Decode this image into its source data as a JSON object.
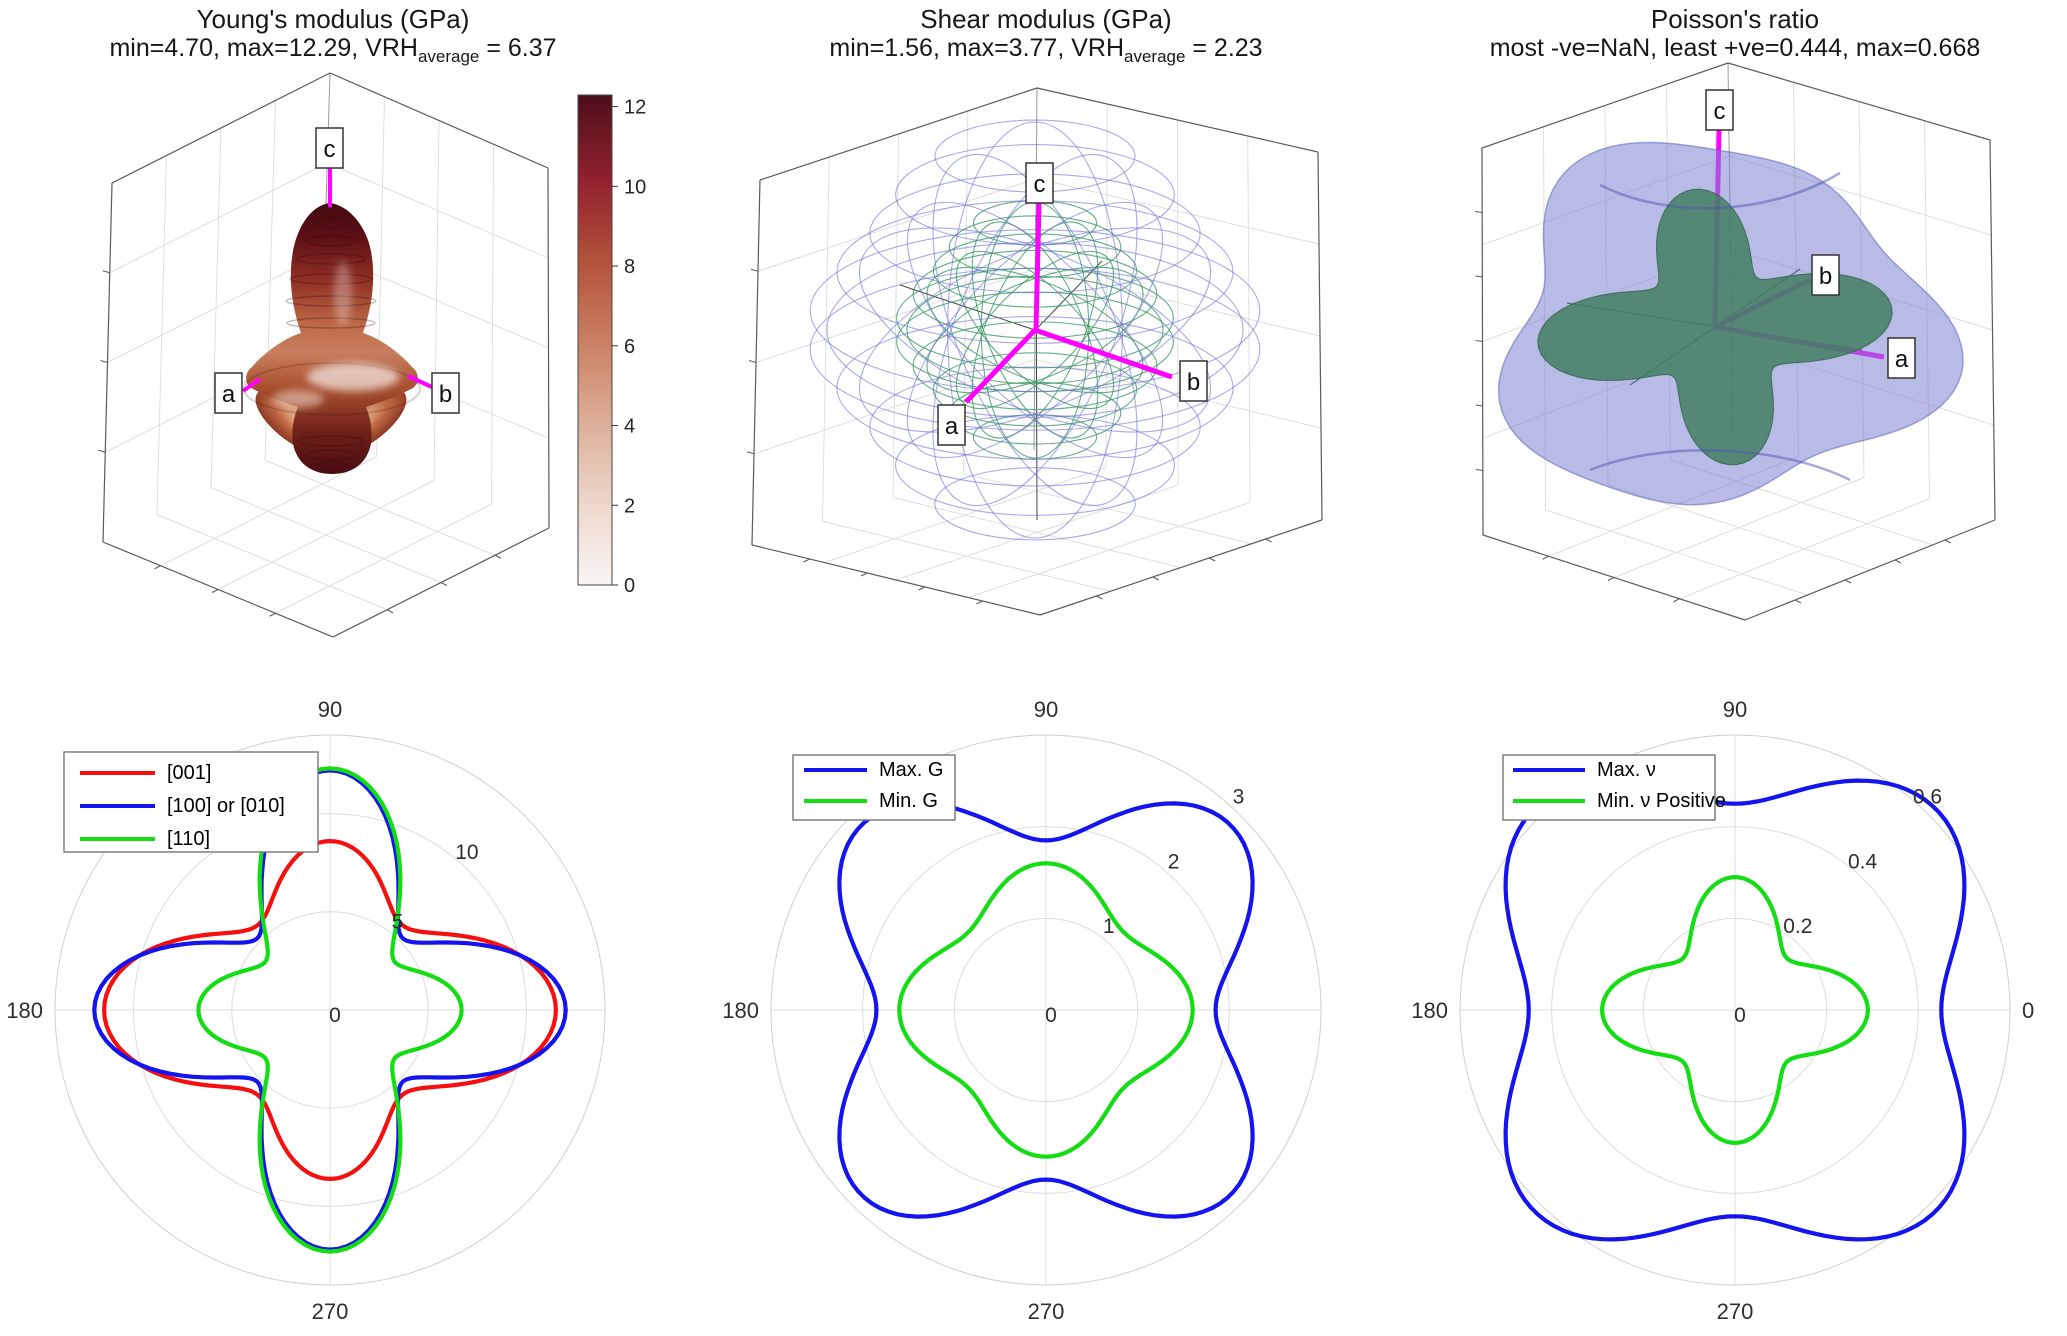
{
  "figure": {
    "background": "#ffffff",
    "accent_magenta": "#ff00ff",
    "grid_color": "#dcdcdc",
    "text_color": "#2b2b2b"
  },
  "panels3d": [
    {
      "title_line1": "Young's modulus (GPa)",
      "sub_pre": "min=4.70, max=12.29, VRH",
      "sub": "average",
      "sub_post": " = 6.37",
      "axis_labels": {
        "a": "a",
        "b": "b",
        "c": "c"
      }
    },
    {
      "title_line1": "Shear modulus (GPa)",
      "sub_pre": "min=1.56, max=3.77, VRH",
      "sub": "average",
      "sub_post": " = 2.23",
      "axis_labels": {
        "a": "a",
        "b": "b",
        "c": "c"
      }
    },
    {
      "title_line1": "Poisson's ratio",
      "sub_pre": "most -ve=NaN, least +ve=0.444, max=0.668",
      "sub": "",
      "sub_post": "",
      "axis_labels": {
        "a": "a",
        "b": "b",
        "c": "c"
      }
    }
  ],
  "chart_data": [
    {
      "type": "surface3d",
      "panel": "young",
      "title": "Young's modulus (GPa)",
      "stats": {
        "min": 4.7,
        "max": 12.29,
        "VRH_average": 6.37
      },
      "surface_style": "solid directional surface, colormap white-to-dark-red",
      "axes": [
        "a",
        "b",
        "c"
      ],
      "colorbar": {
        "min": 0,
        "max": 12.29,
        "ticks": [
          0,
          2,
          4,
          6,
          8,
          10,
          12
        ],
        "colors_bottom_to_top": [
          "#f9f5f3",
          "#edd7cb",
          "#dcae97",
          "#c97f62",
          "#b25039",
          "#8f202e",
          "#4d0f1a"
        ]
      }
    },
    {
      "type": "surface3d",
      "panel": "shear",
      "title": "Shear modulus (GPa)",
      "stats": {
        "min": 1.56,
        "max": 3.77,
        "VRH_average": 2.23
      },
      "surfaces": [
        {
          "name": "Max. G",
          "style": "wire mesh",
          "color": "#7b7bd8"
        },
        {
          "name": "Min. G",
          "style": "wire mesh",
          "color": "#3f9f72"
        }
      ],
      "axes": [
        "a",
        "b",
        "c"
      ]
    },
    {
      "type": "surface3d",
      "panel": "poisson",
      "title": "Poisson's ratio",
      "stats": {
        "most_negative": "NaN",
        "least_positive": 0.444,
        "max": 0.668
      },
      "surfaces": [
        {
          "name": "Max. ν",
          "style": "translucent",
          "color": "#7a7ecd"
        },
        {
          "name": "Min. ν Positive",
          "style": "solid",
          "color": "#2f7a48"
        }
      ],
      "axes": [
        "a",
        "b",
        "c"
      ]
    },
    {
      "type": "polar",
      "panel": "young_polar",
      "quantity": "Young's modulus (GPa) in-plane",
      "rmax": 14,
      "rings": [
        5,
        10,
        14
      ],
      "ring_tick_labels": [
        {
          "value": 5,
          "text": "5"
        },
        {
          "value": 10,
          "text": "10"
        }
      ],
      "zero_label": "0",
      "theta_tick_labels": [
        {
          "deg": 90,
          "text": "90"
        },
        {
          "deg": 180,
          "text": "180"
        },
        {
          "deg": 270,
          "text": "270"
        }
      ],
      "series": [
        {
          "name": "[001]",
          "color": "#f51010",
          "harmonics": {
            "A": 7.925,
            "B4": 2.125,
            "C2": 1.45
          },
          "theta_deg": [
            0,
            15,
            30,
            45,
            60,
            75,
            90,
            105,
            120,
            135,
            150,
            165,
            180,
            195,
            210,
            225,
            240,
            255,
            270,
            285,
            300,
            315,
            330,
            345
          ],
          "r": [
            11.5,
            10.24,
            7.59,
            5.8,
            6.14,
            7.73,
            8.6,
            7.73,
            6.14,
            5.8,
            7.59,
            10.24,
            11.5,
            10.24,
            7.59,
            5.8,
            6.14,
            7.73,
            8.6,
            7.73,
            6.14,
            5.8,
            7.59,
            10.24
          ]
        },
        {
          "name": "[100] or [010]",
          "color": "#1414ee",
          "harmonics": {
            "A": 8.65,
            "B4": 3.45,
            "C2": -0.1
          },
          "theta_deg": [
            0,
            15,
            30,
            45,
            60,
            75,
            90,
            105,
            120,
            135,
            150,
            165,
            180,
            195,
            210,
            225,
            240,
            255,
            270,
            285,
            300,
            315,
            330,
            345
          ],
          "r": [
            12.0,
            10.29,
            6.88,
            5.2,
            6.98,
            10.46,
            12.2,
            10.46,
            6.98,
            5.2,
            6.88,
            10.29,
            12.0,
            10.29,
            6.88,
            5.2,
            6.98,
            10.46,
            12.2,
            10.46,
            6.98,
            5.2,
            6.88,
            10.29
          ]
        },
        {
          "name": "[110]",
          "color": "#14dd14",
          "harmonics": {
            "A": 7.0,
            "B4": 2.5,
            "C2": -2.8
          },
          "theta_deg": [
            0,
            15,
            30,
            45,
            60,
            75,
            90,
            105,
            120,
            135,
            150,
            165,
            180,
            195,
            210,
            225,
            240,
            255,
            270,
            285,
            300,
            315,
            330,
            345
          ],
          "r": [
            6.7,
            5.83,
            4.35,
            4.5,
            7.15,
            10.68,
            12.3,
            10.68,
            7.15,
            4.5,
            4.35,
            5.83,
            6.7,
            5.83,
            4.35,
            4.5,
            7.15,
            10.68,
            12.3,
            10.68,
            7.15,
            4.5,
            4.35,
            5.83
          ]
        }
      ]
    },
    {
      "type": "polar",
      "panel": "shear_polar",
      "quantity": "Shear modulus (GPa) in-plane",
      "rmax": 3,
      "rings": [
        1,
        2,
        3
      ],
      "ring_tick_labels": [
        {
          "value": 1,
          "text": "1"
        },
        {
          "value": 2,
          "text": "2"
        },
        {
          "value": 3,
          "text": "3"
        }
      ],
      "zero_label": "0",
      "theta_tick_labels": [
        {
          "deg": 90,
          "text": "90"
        },
        {
          "deg": 180,
          "text": "180"
        },
        {
          "deg": 270,
          "text": "270"
        }
      ],
      "series": [
        {
          "name": "Max. G",
          "color": "#1414ee",
          "harmonics": {
            "A": 2.35,
            "B4": -0.5,
            "C2": 0
          },
          "theta_deg": [
            0,
            15,
            30,
            45,
            60,
            75,
            90,
            105,
            120,
            135,
            150,
            165,
            180,
            195,
            210,
            225,
            240,
            255,
            270,
            285,
            300,
            315,
            330,
            345
          ],
          "r": [
            1.85,
            2.1,
            2.6,
            2.85,
            2.6,
            2.1,
            1.85,
            2.1,
            2.6,
            2.85,
            2.6,
            2.1,
            1.85,
            2.1,
            2.6,
            2.85,
            2.6,
            2.1,
            1.85,
            2.1,
            2.6,
            2.85,
            2.6,
            2.1
          ]
        },
        {
          "name": "Min. G",
          "color": "#14dd14",
          "harmonics": {
            "A": 1.4,
            "B4": 0.2,
            "C2": 0
          },
          "theta_deg": [
            0,
            15,
            30,
            45,
            60,
            75,
            90,
            105,
            120,
            135,
            150,
            165,
            180,
            195,
            210,
            225,
            240,
            255,
            270,
            285,
            300,
            315,
            330,
            345
          ],
          "r": [
            1.6,
            1.5,
            1.3,
            1.2,
            1.3,
            1.5,
            1.6,
            1.5,
            1.3,
            1.2,
            1.3,
            1.5,
            1.6,
            1.5,
            1.3,
            1.2,
            1.3,
            1.5,
            1.6,
            1.5,
            1.3,
            1.2,
            1.3,
            1.5
          ]
        }
      ]
    },
    {
      "type": "polar",
      "panel": "poisson_polar",
      "quantity": "Poisson's ratio in-plane",
      "rmax": 0.6,
      "rings": [
        0.2,
        0.4,
        0.6
      ],
      "ring_tick_labels": [
        {
          "value": 0.2,
          "text": "0.2"
        },
        {
          "value": 0.4,
          "text": "0.4"
        },
        {
          "value": 0.6,
          "text": "0.6"
        }
      ],
      "zero_label": "0",
      "theta_tick_labels": [
        {
          "deg": 0,
          "text": "0"
        },
        {
          "deg": 90,
          "text": "90"
        },
        {
          "deg": 180,
          "text": "180"
        },
        {
          "deg": 270,
          "text": "270"
        }
      ],
      "series": [
        {
          "name": "Max. ν",
          "color": "#1414ee",
          "harmonics": {
            "A": 0.535,
            "B4": -0.085,
            "C2": 0
          },
          "theta_deg": [
            0,
            15,
            30,
            45,
            60,
            75,
            90,
            105,
            120,
            135,
            150,
            165,
            180,
            195,
            210,
            225,
            240,
            255,
            270,
            285,
            300,
            315,
            330,
            345
          ],
          "r": [
            0.45,
            0.49,
            0.58,
            0.62,
            0.58,
            0.49,
            0.45,
            0.49,
            0.58,
            0.62,
            0.58,
            0.49,
            0.45,
            0.49,
            0.58,
            0.62,
            0.58,
            0.49,
            0.45,
            0.49,
            0.58,
            0.62,
            0.58,
            0.49
          ]
        },
        {
          "name": "Min. ν Positive",
          "color": "#14dd14",
          "harmonics": {
            "A": 0.225,
            "B4": 0.065,
            "C2": 0
          },
          "theta_deg": [
            0,
            15,
            30,
            45,
            60,
            75,
            90,
            105,
            120,
            135,
            150,
            165,
            180,
            195,
            210,
            225,
            240,
            255,
            270,
            285,
            300,
            315,
            330,
            345
          ],
          "r": [
            0.29,
            0.26,
            0.19,
            0.16,
            0.19,
            0.26,
            0.29,
            0.26,
            0.19,
            0.16,
            0.19,
            0.26,
            0.29,
            0.26,
            0.19,
            0.16,
            0.19,
            0.26,
            0.29,
            0.26,
            0.19,
            0.16,
            0.19,
            0.26
          ]
        }
      ]
    }
  ]
}
